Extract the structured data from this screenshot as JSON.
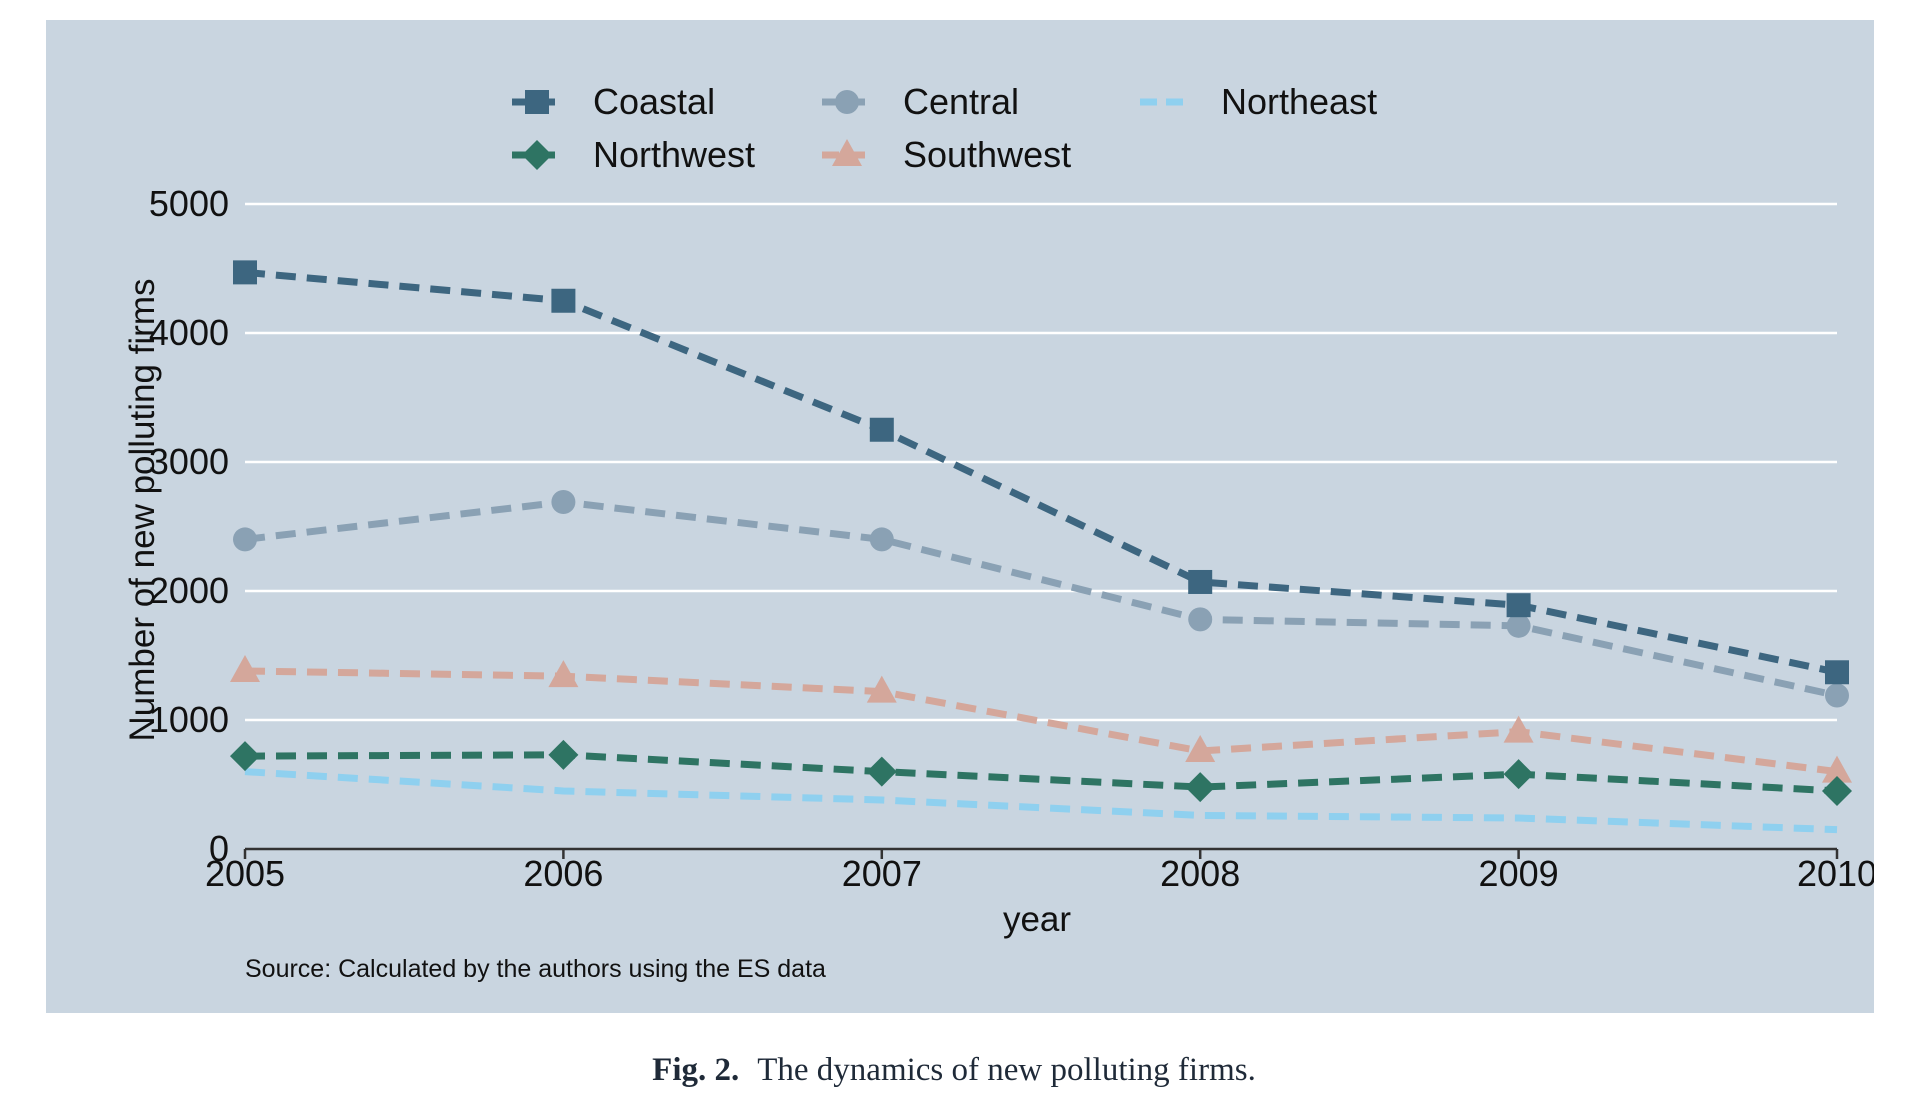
{
  "chart_data": {
    "type": "line",
    "x": [
      2005,
      2006,
      2007,
      2008,
      2009,
      2010
    ],
    "xlabel": "year",
    "ylabel": "Number of new polluting firms",
    "ylim": [
      0,
      5000
    ],
    "yticks": [
      0,
      1000,
      2000,
      3000,
      4000,
      5000
    ],
    "xticks": [
      2005,
      2006,
      2007,
      2008,
      2009,
      2010
    ],
    "grid": "horizontal",
    "legend_position": "top",
    "note": "Source: Calculated by the authors using the ES data",
    "series": [
      {
        "name": "Coastal",
        "values": [
          4470,
          4250,
          3250,
          2070,
          1890,
          1370
        ],
        "color": "#3d6680",
        "marker": "square"
      },
      {
        "name": "Central",
        "values": [
          2400,
          2690,
          2400,
          1780,
          1730,
          1190
        ],
        "color": "#8aa1b4",
        "marker": "circle"
      },
      {
        "name": "Northeast",
        "values": [
          600,
          450,
          380,
          260,
          240,
          150
        ],
        "color": "#8fd0ef",
        "marker": "none"
      },
      {
        "name": "Northwest",
        "values": [
          720,
          730,
          600,
          480,
          580,
          450
        ],
        "color": "#2e7463",
        "marker": "diamond"
      },
      {
        "name": "Southwest",
        "values": [
          1380,
          1340,
          1220,
          760,
          910,
          600
        ],
        "color": "#d4a79b",
        "marker": "triangle"
      }
    ]
  },
  "caption": {
    "label": "Fig. 2.",
    "text": "The dynamics of new polluting firms."
  },
  "colors": {
    "panel_background": "#c9d5e0",
    "gridline": "#ffffff",
    "axis_text": "#111111"
  }
}
